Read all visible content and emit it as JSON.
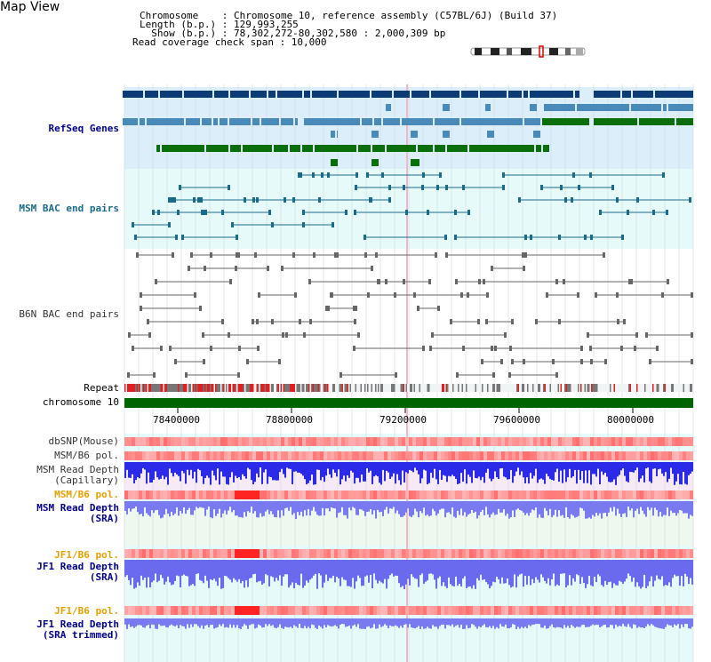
{
  "header": {
    "title": "Map View",
    "info_lines": [
      "Chromosome    : Chromosome 10, reference assembly (C57BL/6J) (Build 37)",
      "Length (b.p.) : 129,993,255",
      "  Show (b.p.) : 78,302,272-80,302,580 : 2,000,309 bp",
      "Read coverage check span : 10,000"
    ]
  },
  "tracks": {
    "refseq": "RefSeq Genes",
    "msm_bac": "MSM BAC end pairs",
    "b6n_bac": "B6N BAC end pairs",
    "repeat": "Repeat",
    "chromosome": "chromosome 10",
    "dbsnp": "dbSNP(Mouse)",
    "msm_b6_pol_1": "MSM/B6 pol.",
    "msm_read_depth_cap": "MSM Read Depth\n(Capillary)",
    "msm_b6_pol_2": "MSM/B6 pol.",
    "msm_read_depth_sra": "MSM Read Depth\n(SRA)",
    "jf1_b6_pol_1": "JF1/B6 pol.",
    "jf1_read_depth_sra": "JF1 Read Depth\n(SRA)",
    "jf1_b6_pol_2": "JF1/B6 pol.",
    "jf1_read_depth_trim": "JF1 Read Depth\n(SRA trimmed)"
  },
  "axis": {
    "ticks": [
      "78400000",
      "78800000",
      "79200000",
      "79600000",
      "80000000"
    ]
  },
  "colors": {
    "refseq_dark": "#0d3b75",
    "refseq_mid": "#4a8ab8",
    "refseq_green": "#0a6e0a",
    "msm_line": "#1a6b8a",
    "b6n_line": "#666666",
    "label_blue": "#00008b",
    "label_teal": "#1a6b8a",
    "label_orange": "#e8a000",
    "chrom_green": "#006400",
    "depth_blue": "#2a2ae8"
  }
}
